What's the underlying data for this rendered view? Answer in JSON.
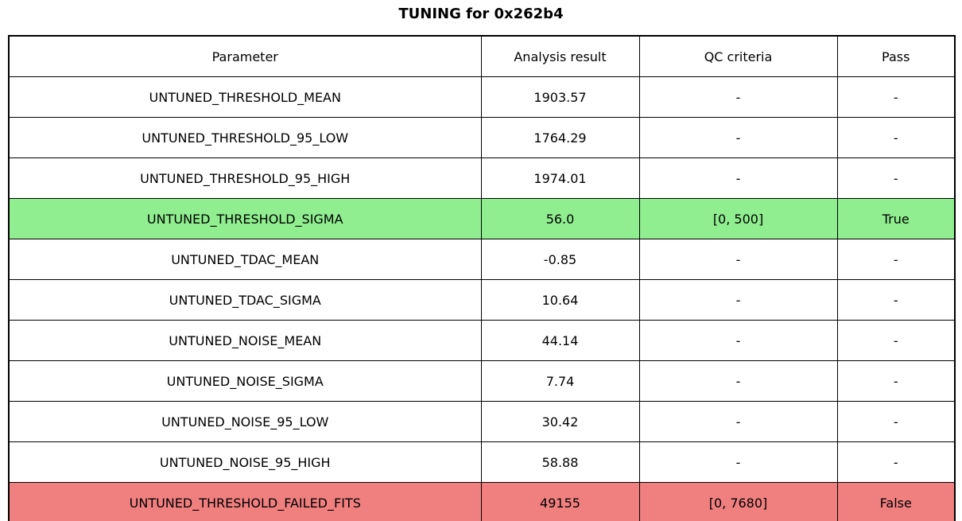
{
  "title": "TUNING for 0x262b4",
  "colors": {
    "pass_row": "#90ee90",
    "fail_row": "#f08080",
    "border": "#000000",
    "background": "#ffffff",
    "text": "#000000"
  },
  "table": {
    "headers": [
      "Parameter",
      "Analysis result",
      "QC criteria",
      "Pass"
    ],
    "rows": [
      {
        "parameter": "UNTUNED_THRESHOLD_MEAN",
        "analysis_result": "1903.57",
        "qc_criteria": "-",
        "pass": "-",
        "status": "none"
      },
      {
        "parameter": "UNTUNED_THRESHOLD_95_LOW",
        "analysis_result": "1764.29",
        "qc_criteria": "-",
        "pass": "-",
        "status": "none"
      },
      {
        "parameter": "UNTUNED_THRESHOLD_95_HIGH",
        "analysis_result": "1974.01",
        "qc_criteria": "-",
        "pass": "-",
        "status": "none"
      },
      {
        "parameter": "UNTUNED_THRESHOLD_SIGMA",
        "analysis_result": "56.0",
        "qc_criteria": "[0, 500]",
        "pass": "True",
        "status": "pass"
      },
      {
        "parameter": "UNTUNED_TDAC_MEAN",
        "analysis_result": "-0.85",
        "qc_criteria": "-",
        "pass": "-",
        "status": "none"
      },
      {
        "parameter": "UNTUNED_TDAC_SIGMA",
        "analysis_result": "10.64",
        "qc_criteria": "-",
        "pass": "-",
        "status": "none"
      },
      {
        "parameter": "UNTUNED_NOISE_MEAN",
        "analysis_result": "44.14",
        "qc_criteria": "-",
        "pass": "-",
        "status": "none"
      },
      {
        "parameter": "UNTUNED_NOISE_SIGMA",
        "analysis_result": "7.74",
        "qc_criteria": "-",
        "pass": "-",
        "status": "none"
      },
      {
        "parameter": "UNTUNED_NOISE_95_LOW",
        "analysis_result": "30.42",
        "qc_criteria": "-",
        "pass": "-",
        "status": "none"
      },
      {
        "parameter": "UNTUNED_NOISE_95_HIGH",
        "analysis_result": "58.88",
        "qc_criteria": "-",
        "pass": "-",
        "status": "none"
      },
      {
        "parameter": "UNTUNED_THRESHOLD_FAILED_FITS",
        "analysis_result": "49155",
        "qc_criteria": "[0, 7680]",
        "pass": "False",
        "status": "fail"
      }
    ]
  },
  "chart_data": {
    "type": "table",
    "title": "TUNING for 0x262b4",
    "columns": [
      "Parameter",
      "Analysis result",
      "QC criteria",
      "Pass"
    ],
    "rows": [
      [
        "UNTUNED_THRESHOLD_MEAN",
        "1903.57",
        "-",
        "-"
      ],
      [
        "UNTUNED_THRESHOLD_95_LOW",
        "1764.29",
        "-",
        "-"
      ],
      [
        "UNTUNED_THRESHOLD_95_HIGH",
        "1974.01",
        "-",
        "-"
      ],
      [
        "UNTUNED_THRESHOLD_SIGMA",
        "56.0",
        "[0, 500]",
        "True"
      ],
      [
        "UNTUNED_TDAC_MEAN",
        "-0.85",
        "-",
        "-"
      ],
      [
        "UNTUNED_TDAC_SIGMA",
        "10.64",
        "-",
        "-"
      ],
      [
        "UNTUNED_NOISE_MEAN",
        "44.14",
        "-",
        "-"
      ],
      [
        "UNTUNED_NOISE_SIGMA",
        "7.74",
        "-",
        "-"
      ],
      [
        "UNTUNED_NOISE_95_LOW",
        "30.42",
        "-",
        "-"
      ],
      [
        "UNTUNED_NOISE_95_HIGH",
        "58.88",
        "-",
        "-"
      ],
      [
        "UNTUNED_THRESHOLD_FAILED_FITS",
        "49155",
        "[0, 7680]",
        "False"
      ]
    ],
    "row_highlights": [
      {
        "row_index": 3,
        "color": "#90ee90",
        "meaning": "pass"
      },
      {
        "row_index": 10,
        "color": "#f08080",
        "meaning": "fail"
      }
    ],
    "layout": {
      "grid": true,
      "header_row": true,
      "text_align": "center"
    }
  }
}
